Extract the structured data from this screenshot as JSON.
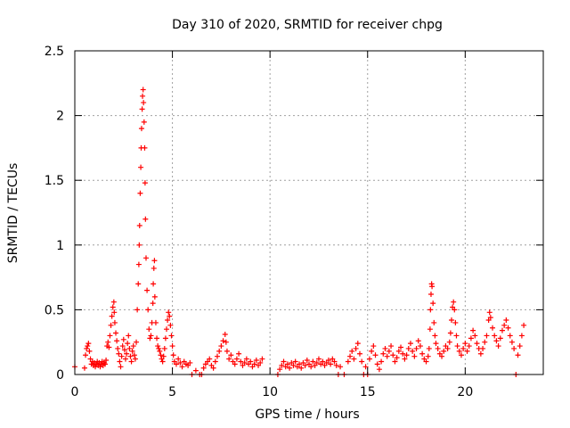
{
  "chart_data": {
    "type": "scatter",
    "title": "Day 310 of 2020, SRMTID for receiver chpg",
    "xlabel": "GPS time / hours",
    "ylabel": "SRMTID / TECUs",
    "xlim": [
      0,
      24
    ],
    "ylim": [
      0,
      2.5
    ],
    "xticks": [
      0,
      5,
      10,
      15,
      20
    ],
    "yticks": [
      0,
      0.5,
      1,
      1.5,
      2,
      2.5
    ],
    "xtick_labels": [
      "0",
      "5",
      "10",
      "15",
      "20"
    ],
    "ytick_labels": [
      "0",
      "0.5",
      "1",
      "1.5",
      "2",
      "2.5"
    ],
    "grid": true,
    "marker": "+",
    "series": [
      {
        "name": "SRMTID",
        "color": "#ff0000",
        "points": [
          [
            0.0,
            0.06
          ],
          [
            0.5,
            0.05
          ],
          [
            0.55,
            0.15
          ],
          [
            0.6,
            0.2
          ],
          [
            0.65,
            0.22
          ],
          [
            0.7,
            0.24
          ],
          [
            0.75,
            0.18
          ],
          [
            0.8,
            0.12
          ],
          [
            0.85,
            0.08
          ],
          [
            0.9,
            0.1
          ],
          [
            0.95,
            0.07
          ],
          [
            1.0,
            0.09
          ],
          [
            1.05,
            0.06
          ],
          [
            1.1,
            0.08
          ],
          [
            1.15,
            0.1
          ],
          [
            1.2,
            0.07
          ],
          [
            1.25,
            0.09
          ],
          [
            1.3,
            0.06
          ],
          [
            1.35,
            0.08
          ],
          [
            1.4,
            0.1
          ],
          [
            1.45,
            0.07
          ],
          [
            1.5,
            0.09
          ],
          [
            1.55,
            0.08
          ],
          [
            1.6,
            0.11
          ],
          [
            1.65,
            0.22
          ],
          [
            1.7,
            0.25
          ],
          [
            1.75,
            0.21
          ],
          [
            1.8,
            0.3
          ],
          [
            1.85,
            0.38
          ],
          [
            1.9,
            0.45
          ],
          [
            1.95,
            0.52
          ],
          [
            2.0,
            0.56
          ],
          [
            2.02,
            0.48
          ],
          [
            2.05,
            0.4
          ],
          [
            2.1,
            0.32
          ],
          [
            2.15,
            0.26
          ],
          [
            2.2,
            0.2
          ],
          [
            2.25,
            0.16
          ],
          [
            2.3,
            0.1
          ],
          [
            2.35,
            0.06
          ],
          [
            2.4,
            0.14
          ],
          [
            2.45,
            0.22
          ],
          [
            2.5,
            0.27
          ],
          [
            2.55,
            0.19
          ],
          [
            2.6,
            0.12
          ],
          [
            2.65,
            0.16
          ],
          [
            2.7,
            0.24
          ],
          [
            2.75,
            0.3
          ],
          [
            2.8,
            0.2
          ],
          [
            2.85,
            0.14
          ],
          [
            2.9,
            0.1
          ],
          [
            2.95,
            0.18
          ],
          [
            3.0,
            0.22
          ],
          [
            3.05,
            0.15
          ],
          [
            3.1,
            0.12
          ],
          [
            3.15,
            0.25
          ],
          [
            3.2,
            0.5
          ],
          [
            3.25,
            0.7
          ],
          [
            3.28,
            0.85
          ],
          [
            3.3,
            1.0
          ],
          [
            3.32,
            1.15
          ],
          [
            3.35,
            1.4
          ],
          [
            3.38,
            1.6
          ],
          [
            3.4,
            1.75
          ],
          [
            3.42,
            1.9
          ],
          [
            3.45,
            2.05
          ],
          [
            3.47,
            2.15
          ],
          [
            3.5,
            2.2
          ],
          [
            3.52,
            2.1
          ],
          [
            3.55,
            1.95
          ],
          [
            3.58,
            1.75
          ],
          [
            3.6,
            1.48
          ],
          [
            3.62,
            1.2
          ],
          [
            3.65,
            0.9
          ],
          [
            3.7,
            0.65
          ],
          [
            3.75,
            0.5
          ],
          [
            3.8,
            0.35
          ],
          [
            3.85,
            0.28
          ],
          [
            3.9,
            0.3
          ],
          [
            3.95,
            0.4
          ],
          [
            4.0,
            0.55
          ],
          [
            4.02,
            0.7
          ],
          [
            4.05,
            0.82
          ],
          [
            4.08,
            0.88
          ],
          [
            4.1,
            0.6
          ],
          [
            4.15,
            0.4
          ],
          [
            4.2,
            0.28
          ],
          [
            4.25,
            0.22
          ],
          [
            4.3,
            0.2
          ],
          [
            4.35,
            0.18
          ],
          [
            4.4,
            0.15
          ],
          [
            4.45,
            0.12
          ],
          [
            4.5,
            0.1
          ],
          [
            4.55,
            0.14
          ],
          [
            4.6,
            0.2
          ],
          [
            4.65,
            0.28
          ],
          [
            4.7,
            0.35
          ],
          [
            4.75,
            0.42
          ],
          [
            4.8,
            0.48
          ],
          [
            4.85,
            0.45
          ],
          [
            4.9,
            0.38
          ],
          [
            4.95,
            0.3
          ],
          [
            5.0,
            0.22
          ],
          [
            5.05,
            0.15
          ],
          [
            5.1,
            0.1
          ],
          [
            5.2,
            0.08
          ],
          [
            5.3,
            0.12
          ],
          [
            5.4,
            0.09
          ],
          [
            5.5,
            0.06
          ],
          [
            5.6,
            0.1
          ],
          [
            5.7,
            0.08
          ],
          [
            5.8,
            0.07
          ],
          [
            5.9,
            0.09
          ],
          [
            6.0,
            0.0
          ],
          [
            6.2,
            0.03
          ],
          [
            6.4,
            0.0
          ],
          [
            6.5,
            0.0
          ],
          [
            6.6,
            0.05
          ],
          [
            6.7,
            0.08
          ],
          [
            6.8,
            0.1
          ],
          [
            6.9,
            0.12
          ],
          [
            7.0,
            0.07
          ],
          [
            7.1,
            0.05
          ],
          [
            7.2,
            0.1
          ],
          [
            7.3,
            0.14
          ],
          [
            7.4,
            0.18
          ],
          [
            7.5,
            0.22
          ],
          [
            7.6,
            0.26
          ],
          [
            7.7,
            0.31
          ],
          [
            7.75,
            0.25
          ],
          [
            7.8,
            0.18
          ],
          [
            7.9,
            0.12
          ],
          [
            8.0,
            0.15
          ],
          [
            8.1,
            0.1
          ],
          [
            8.2,
            0.08
          ],
          [
            8.3,
            0.12
          ],
          [
            8.4,
            0.16
          ],
          [
            8.5,
            0.1
          ],
          [
            8.6,
            0.07
          ],
          [
            8.7,
            0.09
          ],
          [
            8.8,
            0.12
          ],
          [
            8.9,
            0.08
          ],
          [
            9.0,
            0.1
          ],
          [
            9.1,
            0.06
          ],
          [
            9.2,
            0.08
          ],
          [
            9.3,
            0.11
          ],
          [
            9.4,
            0.07
          ],
          [
            9.5,
            0.09
          ],
          [
            9.6,
            0.12
          ],
          [
            10.4,
            0.0
          ],
          [
            10.5,
            0.04
          ],
          [
            10.6,
            0.07
          ],
          [
            10.7,
            0.1
          ],
          [
            10.8,
            0.06
          ],
          [
            10.9,
            0.08
          ],
          [
            11.0,
            0.05
          ],
          [
            11.1,
            0.09
          ],
          [
            11.2,
            0.07
          ],
          [
            11.3,
            0.1
          ],
          [
            11.4,
            0.06
          ],
          [
            11.5,
            0.08
          ],
          [
            11.6,
            0.05
          ],
          [
            11.7,
            0.09
          ],
          [
            11.8,
            0.07
          ],
          [
            11.9,
            0.11
          ],
          [
            12.0,
            0.08
          ],
          [
            12.1,
            0.06
          ],
          [
            12.2,
            0.1
          ],
          [
            12.3,
            0.07
          ],
          [
            12.4,
            0.09
          ],
          [
            12.5,
            0.12
          ],
          [
            12.6,
            0.08
          ],
          [
            12.7,
            0.1
          ],
          [
            12.8,
            0.07
          ],
          [
            12.9,
            0.09
          ],
          [
            13.0,
            0.11
          ],
          [
            13.1,
            0.08
          ],
          [
            13.2,
            0.12
          ],
          [
            13.3,
            0.1
          ],
          [
            13.4,
            0.07
          ],
          [
            13.5,
            0.0
          ],
          [
            13.6,
            0.06
          ],
          [
            13.8,
            0.0
          ],
          [
            14.0,
            0.1
          ],
          [
            14.1,
            0.14
          ],
          [
            14.2,
            0.18
          ],
          [
            14.3,
            0.12
          ],
          [
            14.4,
            0.2
          ],
          [
            14.5,
            0.24
          ],
          [
            14.6,
            0.16
          ],
          [
            14.7,
            0.1
          ],
          [
            14.8,
            0.0
          ],
          [
            14.9,
            0.06
          ],
          [
            15.0,
            0.0
          ],
          [
            15.1,
            0.12
          ],
          [
            15.2,
            0.18
          ],
          [
            15.3,
            0.22
          ],
          [
            15.4,
            0.15
          ],
          [
            15.5,
            0.08
          ],
          [
            15.6,
            0.04
          ],
          [
            15.7,
            0.1
          ],
          [
            15.8,
            0.16
          ],
          [
            15.9,
            0.2
          ],
          [
            16.0,
            0.14
          ],
          [
            16.1,
            0.18
          ],
          [
            16.2,
            0.22
          ],
          [
            16.3,
            0.15
          ],
          [
            16.4,
            0.1
          ],
          [
            16.5,
            0.13
          ],
          [
            16.6,
            0.18
          ],
          [
            16.7,
            0.21
          ],
          [
            16.8,
            0.16
          ],
          [
            16.9,
            0.12
          ],
          [
            17.0,
            0.15
          ],
          [
            17.1,
            0.2
          ],
          [
            17.2,
            0.24
          ],
          [
            17.3,
            0.18
          ],
          [
            17.4,
            0.14
          ],
          [
            17.5,
            0.2
          ],
          [
            17.6,
            0.26
          ],
          [
            17.7,
            0.22
          ],
          [
            17.8,
            0.16
          ],
          [
            17.9,
            0.12
          ],
          [
            18.0,
            0.1
          ],
          [
            18.1,
            0.14
          ],
          [
            18.15,
            0.2
          ],
          [
            18.2,
            0.35
          ],
          [
            18.22,
            0.5
          ],
          [
            18.25,
            0.62
          ],
          [
            18.28,
            0.7
          ],
          [
            18.3,
            0.68
          ],
          [
            18.35,
            0.55
          ],
          [
            18.4,
            0.4
          ],
          [
            18.45,
            0.3
          ],
          [
            18.5,
            0.24
          ],
          [
            18.6,
            0.2
          ],
          [
            18.7,
            0.16
          ],
          [
            18.8,
            0.14
          ],
          [
            18.9,
            0.18
          ],
          [
            19.0,
            0.22
          ],
          [
            19.1,
            0.2
          ],
          [
            19.2,
            0.25
          ],
          [
            19.25,
            0.32
          ],
          [
            19.3,
            0.42
          ],
          [
            19.35,
            0.52
          ],
          [
            19.4,
            0.56
          ],
          [
            19.45,
            0.5
          ],
          [
            19.5,
            0.4
          ],
          [
            19.55,
            0.3
          ],
          [
            19.6,
            0.22
          ],
          [
            19.7,
            0.18
          ],
          [
            19.8,
            0.15
          ],
          [
            19.9,
            0.2
          ],
          [
            20.0,
            0.24
          ],
          [
            20.1,
            0.18
          ],
          [
            20.2,
            0.22
          ],
          [
            20.3,
            0.28
          ],
          [
            20.4,
            0.34
          ],
          [
            20.5,
            0.3
          ],
          [
            20.6,
            0.24
          ],
          [
            20.7,
            0.2
          ],
          [
            20.8,
            0.16
          ],
          [
            20.9,
            0.2
          ],
          [
            21.0,
            0.25
          ],
          [
            21.1,
            0.3
          ],
          [
            21.2,
            0.42
          ],
          [
            21.25,
            0.48
          ],
          [
            21.3,
            0.44
          ],
          [
            21.4,
            0.36
          ],
          [
            21.5,
            0.3
          ],
          [
            21.6,
            0.26
          ],
          [
            21.7,
            0.22
          ],
          [
            21.8,
            0.28
          ],
          [
            21.9,
            0.34
          ],
          [
            22.0,
            0.38
          ],
          [
            22.1,
            0.42
          ],
          [
            22.2,
            0.36
          ],
          [
            22.3,
            0.3
          ],
          [
            22.4,
            0.25
          ],
          [
            22.5,
            0.2
          ],
          [
            22.6,
            0.0
          ],
          [
            22.7,
            0.15
          ],
          [
            22.8,
            0.22
          ],
          [
            22.9,
            0.3
          ],
          [
            23.0,
            0.38
          ]
        ]
      }
    ]
  }
}
